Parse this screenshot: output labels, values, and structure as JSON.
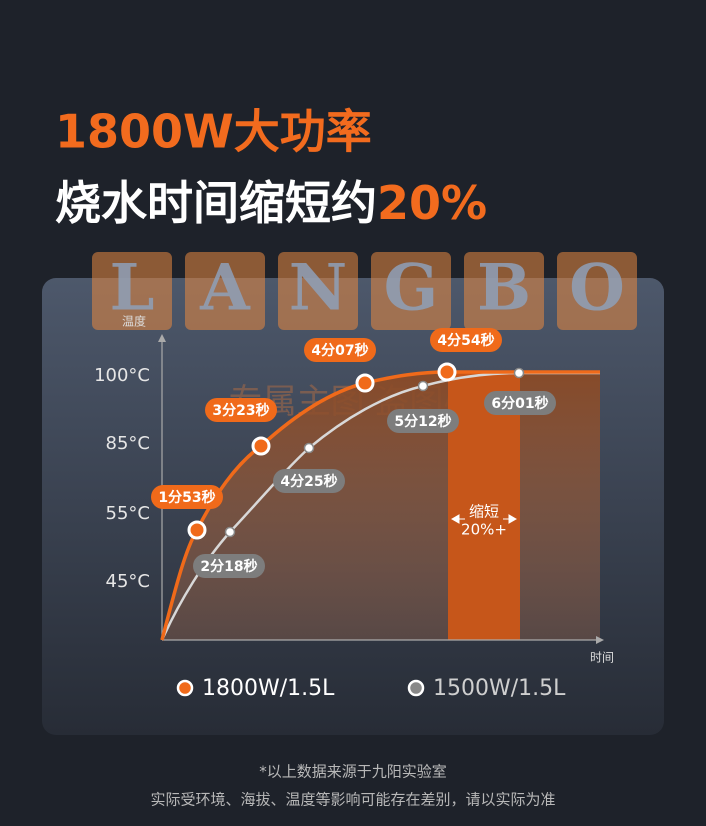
{
  "headline": {
    "line1": "1800W大功率",
    "line2": "烧水时间缩短约",
    "line2_highlight": "20%"
  },
  "watermark": {
    "letters": [
      "L",
      "A",
      "N",
      "G",
      "B",
      "O"
    ],
    "text": "专属主图 盗图必究"
  },
  "chart": {
    "y_axis_label": "温度",
    "x_axis_label": "时间",
    "y_ticks": [
      "100°C",
      "85°C",
      "55°C",
      "45°C"
    ],
    "series": [
      {
        "name": "1800W/1.5L",
        "color": "#f06a1a",
        "points": [
          "1分53秒",
          "3分23秒",
          "4分07秒",
          "4分54秒"
        ]
      },
      {
        "name": "1500W/1.5L",
        "color": "#c8c8c8",
        "points": [
          "2分18秒",
          "4分25秒",
          "5分12秒",
          "6分01秒"
        ]
      }
    ],
    "gap_label": [
      "缩短",
      "20%+"
    ]
  },
  "footnotes": [
    "*以上数据来源于九阳实验室",
    "实际受环境、海拔、温度等影响可能存在差别，请以实际为准"
  ]
}
